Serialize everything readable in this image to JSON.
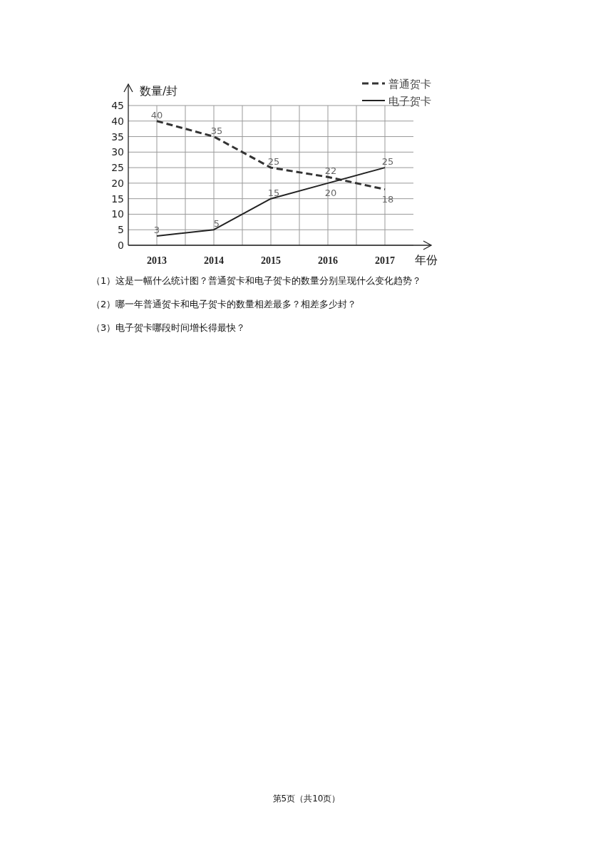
{
  "chart_data": {
    "type": "line",
    "ylabel": "数量/封",
    "xlabel": "年份",
    "categories": [
      "2013",
      "2014",
      "2015",
      "2016",
      "2017"
    ],
    "ylim": [
      0,
      45
    ],
    "yticks": [
      0,
      5,
      10,
      15,
      20,
      25,
      30,
      35,
      40,
      45
    ],
    "grid": true,
    "legend": "top right",
    "data_labels": true,
    "marker": "none",
    "series": [
      {
        "name": "普通贺卡",
        "color": "#333333",
        "line_style": "dashed",
        "values": [
          40,
          35,
          25,
          22,
          18
        ]
      },
      {
        "name": "电子贺卡",
        "color": "#222222",
        "line_style": "solid",
        "values": [
          3,
          5,
          15,
          20,
          25
        ]
      }
    ],
    "annotations": [
      "（1）这是一幅什么统计图？普通贺卡和电子贺卡的数量分别呈现什么变化趋势？",
      "（2）哪一年普通贺卡和电子贺卡的数量相差最多？相差多少封？",
      "（3）电子贺卡哪段时间增长得最快？",
      "第5页（共10页）"
    ]
  }
}
